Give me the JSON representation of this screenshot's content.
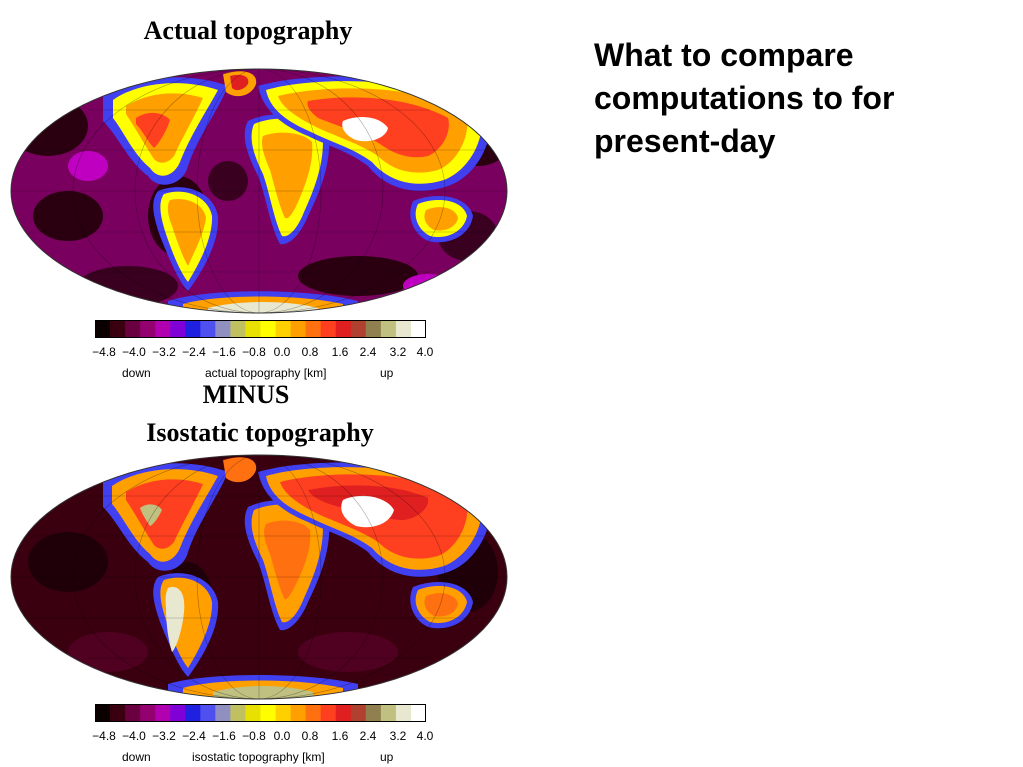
{
  "slide": {
    "heading_lines": [
      "What to compare",
      "computations to for",
      "present-day"
    ]
  },
  "top_panel": {
    "title": "Actual topography",
    "colorbar": {
      "ticks": [
        "−4.8",
        "−4.0",
        "−3.2",
        "−2.4",
        "−1.6",
        "−0.8",
        "0.0",
        "0.8",
        "1.6",
        "2.4",
        "3.2",
        "4.0"
      ],
      "label_down": "down",
      "label_mid": "actual topography [km]",
      "label_up": "up"
    }
  },
  "operator": {
    "label": "MINUS"
  },
  "bottom_panel": {
    "title": "Isostatic topography",
    "colorbar": {
      "ticks": [
        "−4.8",
        "−4.0",
        "−3.2",
        "−2.4",
        "−1.6",
        "−0.8",
        "0.0",
        "0.8",
        "1.6",
        "2.4",
        "3.2",
        "4.0"
      ],
      "label_down": "down",
      "label_mid": "isostatic topography [km]",
      "label_up": "up"
    }
  },
  "palette": [
    "#0a0000",
    "#3a0010",
    "#6b0040",
    "#930070",
    "#b000b0",
    "#8000d8",
    "#2020e0",
    "#5050f0",
    "#9090c0",
    "#c0c060",
    "#e8e000",
    "#ffff00",
    "#ffd000",
    "#ffa000",
    "#ff7010",
    "#ff4020",
    "#e02020",
    "#b04030",
    "#908050",
    "#c0c080",
    "#e8e8d0",
    "#ffffff"
  ]
}
